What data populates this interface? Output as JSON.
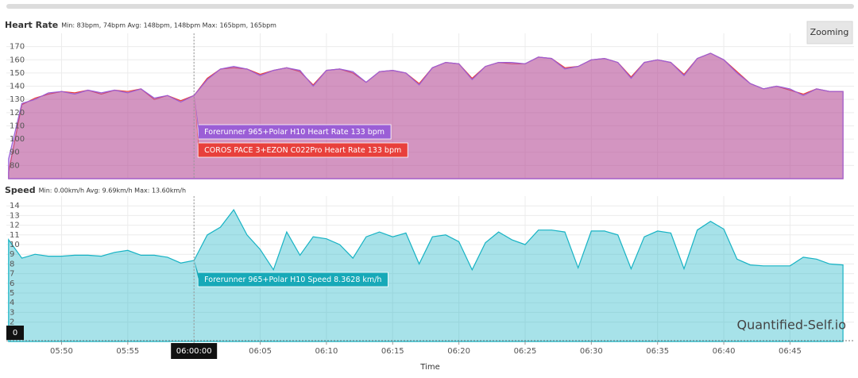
{
  "page": {
    "zoom_button": "Zooming",
    "watermark": "Quantified-Self.io"
  },
  "chart_data": [
    {
      "type": "area",
      "title": "Heart Rate",
      "subtitle": "Min: 83bpm, 74bpm Avg: 148bpm, 148bpm Max: 165bpm, 165bpm",
      "x": [
        "05:46:00",
        "05:47:00",
        "05:48:00",
        "05:49:00",
        "05:50:00",
        "05:51:00",
        "05:52:00",
        "05:53:00",
        "05:54:00",
        "05:55:00",
        "05:56:00",
        "05:57:00",
        "05:58:00",
        "05:59:00",
        "06:00:00",
        "06:01:00",
        "06:02:00",
        "06:03:00",
        "06:04:00",
        "06:05:00",
        "06:06:00",
        "06:07:00",
        "06:08:00",
        "06:09:00",
        "06:10:00",
        "06:11:00",
        "06:12:00",
        "06:13:00",
        "06:14:00",
        "06:15:00",
        "06:16:00",
        "06:17:00",
        "06:18:00",
        "06:19:00",
        "06:20:00",
        "06:21:00",
        "06:22:00",
        "06:23:00",
        "06:24:00",
        "06:25:00",
        "06:26:00",
        "06:27:00",
        "06:28:00",
        "06:29:00",
        "06:30:00",
        "06:31:00",
        "06:32:00",
        "06:33:00",
        "06:34:00",
        "06:35:00",
        "06:36:00",
        "06:37:00",
        "06:38:00",
        "06:39:00",
        "06:40:00",
        "06:41:00",
        "06:42:00",
        "06:43:00",
        "06:44:00",
        "06:45:00",
        "06:46:00",
        "06:47:00",
        "06:48:00",
        "06:49:00"
      ],
      "series": [
        {
          "name": "COROS PACE 3+EZON C022Pro Heart Rate",
          "color": "#e8403c",
          "values": [
            75,
            126,
            131,
            134,
            136,
            135,
            137,
            134,
            137,
            136,
            138,
            130,
            133,
            129,
            133,
            146,
            153,
            154,
            153,
            149,
            152,
            154,
            151,
            141,
            152,
            153,
            150,
            143,
            151,
            152,
            150,
            142,
            154,
            158,
            157,
            146,
            155,
            158,
            157,
            157,
            162,
            161,
            154,
            155,
            160,
            161,
            158,
            147,
            158,
            160,
            158,
            149,
            161,
            165,
            160,
            151,
            142,
            138,
            140,
            137,
            134,
            138,
            136,
            136
          ]
        },
        {
          "name": "Forerunner 965+Polar H10 Heart Rate",
          "color": "#9b5ed6",
          "values": [
            85,
            127,
            130,
            135,
            136,
            134,
            137,
            135,
            137,
            135,
            138,
            131,
            133,
            128,
            133,
            145,
            153,
            155,
            153,
            148,
            152,
            154,
            152,
            140,
            152,
            153,
            151,
            143,
            151,
            152,
            150,
            141,
            154,
            158,
            157,
            145,
            155,
            158,
            158,
            157,
            162,
            161,
            153,
            155,
            160,
            161,
            158,
            146,
            158,
            160,
            158,
            148,
            161,
            165,
            160,
            150,
            142,
            138,
            140,
            138,
            133,
            138,
            136,
            136
          ]
        }
      ],
      "xlim": [
        "05:45:50",
        "06:49:50"
      ],
      "ylim": [
        70,
        180
      ],
      "yticks": [
        80,
        90,
        100,
        110,
        120,
        130,
        140,
        150,
        160,
        170
      ],
      "grid": true,
      "tooltip": {
        "x": "06:00:00",
        "labels": [
          "Forerunner 965+Polar H10 Heart Rate 133 bpm",
          "COROS PACE 3+EZON C022Pro Heart Rate 133 bpm"
        ],
        "colors": [
          "#9b5ed6",
          "#e8403c"
        ]
      }
    },
    {
      "type": "area",
      "title": "Speed",
      "subtitle": "Min: 0.00km/h Avg: 9.69km/h Max: 13.60km/h",
      "x": [
        "05:46:00",
        "05:47:00",
        "05:48:00",
        "05:49:00",
        "05:50:00",
        "05:51:00",
        "05:52:00",
        "05:53:00",
        "05:54:00",
        "05:55:00",
        "05:56:00",
        "05:57:00",
        "05:58:00",
        "05:59:00",
        "06:00:00",
        "06:01:00",
        "06:02:00",
        "06:03:00",
        "06:04:00",
        "06:05:00",
        "06:06:00",
        "06:07:00",
        "06:08:00",
        "06:09:00",
        "06:10:00",
        "06:11:00",
        "06:12:00",
        "06:13:00",
        "06:14:00",
        "06:15:00",
        "06:16:00",
        "06:17:00",
        "06:18:00",
        "06:19:00",
        "06:20:00",
        "06:21:00",
        "06:22:00",
        "06:23:00",
        "06:24:00",
        "06:25:00",
        "06:26:00",
        "06:27:00",
        "06:28:00",
        "06:29:00",
        "06:30:00",
        "06:31:00",
        "06:32:00",
        "06:33:00",
        "06:34:00",
        "06:35:00",
        "06:36:00",
        "06:37:00",
        "06:38:00",
        "06:39:00",
        "06:40:00",
        "06:41:00",
        "06:42:00",
        "06:43:00",
        "06:44:00",
        "06:45:00",
        "06:46:00",
        "06:47:00",
        "06:48:00",
        "06:49:00"
      ],
      "series": [
        {
          "name": "Forerunner 965+Polar H10 Speed",
          "color": "#17b3c4",
          "values": [
            10.5,
            8.6,
            9.0,
            8.8,
            8.8,
            8.9,
            8.9,
            8.8,
            9.2,
            9.4,
            8.9,
            8.9,
            8.7,
            8.1,
            8.3628,
            11.0,
            11.8,
            13.6,
            11.0,
            9.5,
            7.4,
            11.3,
            8.9,
            10.8,
            10.6,
            10.0,
            8.6,
            10.8,
            11.3,
            10.8,
            11.2,
            8.0,
            10.8,
            11.0,
            10.3,
            7.4,
            10.2,
            11.3,
            10.5,
            10.0,
            11.5,
            11.5,
            11.3,
            7.6,
            11.4,
            11.4,
            11.0,
            7.5,
            10.8,
            11.4,
            11.2,
            7.5,
            11.5,
            12.4,
            11.6,
            8.5,
            7.9,
            7.8,
            7.8,
            7.8,
            8.7,
            8.5,
            8.0,
            7.9
          ]
        }
      ],
      "xlim": [
        "05:45:50",
        "06:49:50"
      ],
      "ylim": [
        0,
        15
      ],
      "yticks": [
        2,
        3,
        4,
        5,
        6,
        7,
        8,
        9,
        10,
        11,
        12,
        13,
        14
      ],
      "grid": true,
      "xticks": [
        "05:50",
        "05:55",
        "06:00",
        "06:05",
        "06:10",
        "06:15",
        "06:20",
        "06:25",
        "06:30",
        "06:35",
        "06:40",
        "06:45"
      ],
      "xlabel": "Time",
      "tooltip": {
        "x": "06:00:00",
        "labels": [
          "Forerunner 965+Polar H10 Speed 8.3628 km/h"
        ],
        "colors": [
          "#17a9b8"
        ]
      },
      "crosshair_x_label": "06:00:00",
      "crosshair_y_label": "0"
    }
  ]
}
